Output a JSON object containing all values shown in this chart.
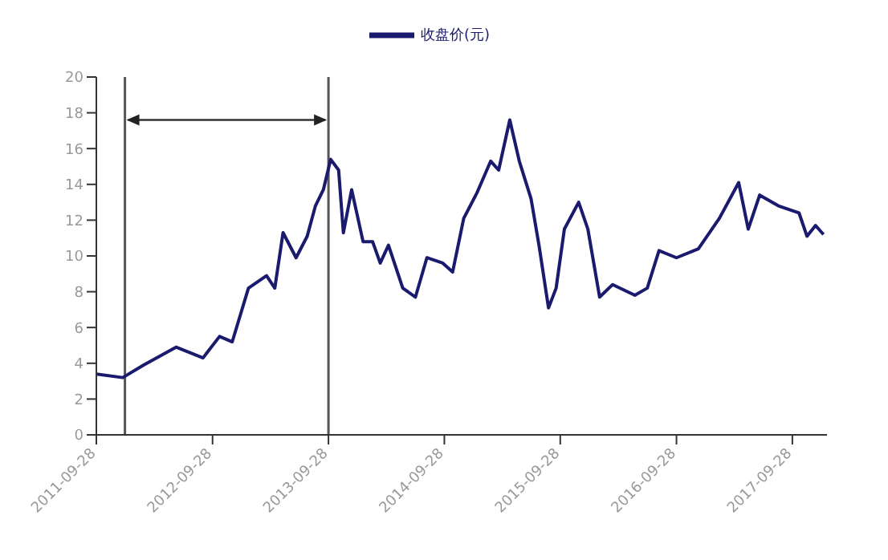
{
  "chart_data": {
    "type": "line",
    "x": [
      "2011-09-28",
      "2011-12-20",
      "2012-02-24",
      "2012-06-05",
      "2012-08-29",
      "2012-10-20",
      "2012-11-29",
      "2013-01-19",
      "2013-03-17",
      "2013-04-12",
      "2013-05-08",
      "2013-06-18",
      "2013-07-23",
      "2013-08-18",
      "2013-09-12",
      "2013-10-05",
      "2013-10-30",
      "2013-11-14",
      "2013-12-10",
      "2014-01-15",
      "2014-02-14",
      "2014-03-10",
      "2014-04-05",
      "2014-05-20",
      "2014-06-29",
      "2014-08-04",
      "2014-09-23",
      "2014-10-24",
      "2014-11-28",
      "2015-01-08",
      "2015-02-21",
      "2015-03-18",
      "2015-04-22",
      "2015-05-22",
      "2015-06-28",
      "2015-07-23",
      "2015-08-22",
      "2015-09-15",
      "2015-10-11",
      "2015-11-25",
      "2015-12-24",
      "2016-01-30",
      "2016-03-11",
      "2016-05-20",
      "2016-06-28",
      "2016-08-04",
      "2016-09-28",
      "2016-12-06",
      "2017-02-10",
      "2017-04-12",
      "2017-05-12",
      "2017-06-17",
      "2017-08-15",
      "2017-10-19",
      "2017-11-13",
      "2017-12-10",
      "2018-01-04"
    ],
    "series": [
      {
        "name": "收盘价(元)",
        "color": "#1a1a6e",
        "values": [
          3.4,
          3.2,
          3.9,
          4.9,
          4.3,
          5.5,
          5.2,
          8.2,
          8.9,
          8.2,
          11.3,
          9.9,
          11.1,
          12.8,
          13.7,
          15.4,
          14.8,
          11.3,
          13.7,
          10.8,
          10.8,
          9.6,
          10.6,
          8.2,
          7.7,
          9.9,
          9.6,
          9.1,
          12.1,
          13.5,
          15.3,
          14.8,
          17.6,
          15.3,
          13.2,
          10.6,
          7.1,
          8.2,
          11.5,
          13.0,
          11.5,
          7.7,
          8.4,
          7.8,
          8.2,
          10.3,
          9.9,
          10.4,
          12.1,
          14.1,
          11.5,
          13.4,
          12.8,
          12.4,
          11.1,
          11.7,
          11.2
        ]
      }
    ],
    "xlim": [
      "2011-09-28",
      "2018-01-15"
    ],
    "xticks": [
      {
        "value": "2011-09-28",
        "label": "2011-09-28"
      },
      {
        "value": "2012-09-28",
        "label": "2012-09-28"
      },
      {
        "value": "2013-09-28",
        "label": "2013-09-28"
      },
      {
        "value": "2014-09-28",
        "label": "2014-09-28"
      },
      {
        "value": "2015-09-28",
        "label": "2015-09-28"
      },
      {
        "value": "2016-09-28",
        "label": "2016-09-28"
      },
      {
        "value": "2017-09-28",
        "label": "2017-09-28"
      }
    ],
    "ylim": [
      0,
      20
    ],
    "yticks": [
      0,
      2,
      4,
      6,
      8,
      10,
      12,
      14,
      16,
      18,
      20
    ],
    "ref_lines": [
      {
        "axis": "x",
        "value": "2011-12-27",
        "color": "#555555"
      },
      {
        "axis": "x",
        "value": "2013-09-28",
        "color": "#555555"
      }
    ],
    "grid": false,
    "legend": "top",
    "marker": "none",
    "line_style": "solid"
  }
}
